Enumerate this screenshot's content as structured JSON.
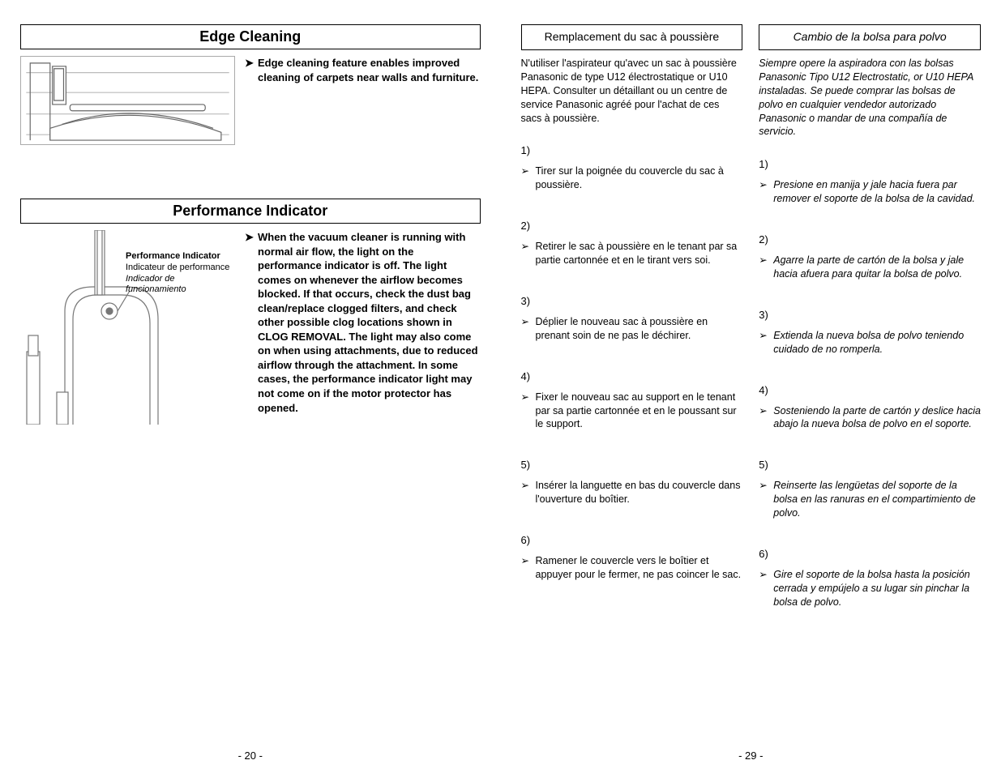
{
  "leftPage": {
    "section1": {
      "title": "Edge Cleaning",
      "body": "Edge cleaning feature enables improved cleaning of carpets near walls and furniture."
    },
    "section2": {
      "title": "Performance Indicator",
      "label": {
        "en": "Performance Indicator",
        "fr": "Indicateur de performance",
        "es": "Indicador de funcionamiento"
      },
      "body": "When the vacuum cleaner is running with normal air flow, the light on the performance indicator is off.  The light comes on whenever the airflow becomes blocked.  If that occurs, check the dust bag clean/replace clogged filters, and check other possible clog locations shown in CLOG REMOVAL. The light may also come on when using attachments, due to reduced airflow through the attachment. In some cases, the performance indicator light may not come on if the motor protector has opened."
    },
    "pageNumber": "- 20 -"
  },
  "rightPage": {
    "french": {
      "title": "Remplacement du sac à poussière",
      "intro": "N'utiliser l'aspirateur qu'avec un sac à poussière Panasonic de type U12 électrostatique or U10 HEPA. Consulter un détaillant ou un centre de service Panasonic agréé pour l'achat de ces sacs à poussière.",
      "steps": [
        {
          "num": "1)",
          "text": "Tirer sur la poignée du couvercle du sac à poussière."
        },
        {
          "num": "2)",
          "text": "Retirer le sac à poussière en le tenant par sa partie cartonnée et en le tirant vers soi."
        },
        {
          "num": "3)",
          "text": "Déplier le nouveau sac à poussière en prenant soin de ne pas le déchirer."
        },
        {
          "num": "4)",
          "text": "Fixer le nouveau sac au support en le tenant par sa partie cartonnée et en le poussant sur le support."
        },
        {
          "num": "5)",
          "text": "Insérer la languette en bas du couvercle dans l'ouverture du boîtier."
        },
        {
          "num": "6)",
          "text": "Ramener le couvercle vers le boîtier et appuyer pour le fermer, ne pas coincer le sac."
        }
      ]
    },
    "spanish": {
      "title": "Cambio de la bolsa para polvo",
      "intro": "Siempre opere la aspiradora con las bolsas Panasonic Tipo U12 Electrostatic, or U10 HEPA instaladas. Se puede comprar las bolsas de polvo en cualquier vendedor autorizado Panasonic o mandar de una compañía de servicio.",
      "steps": [
        {
          "num": "1)",
          "text": "Presione en manija y jale hacia fuera par remover el soporte de la bolsa de la cavidad."
        },
        {
          "num": "2)",
          "text": "Agarre la parte de cartón de la bolsa y jale hacia afuera para quitar la bolsa de polvo."
        },
        {
          "num": "3)",
          "text": "Extienda la nueva bolsa de polvo teniendo cuidado de no romperla."
        },
        {
          "num": "4)",
          "text": "Sosteniendo la parte de cartón y deslice hacia abajo la nueva bolsa de polvo en el soporte."
        },
        {
          "num": "5)",
          "text": "Reinserte las lengüetas del soporte de la bolsa en las ranuras en el compartimiento de polvo."
        },
        {
          "num": "6)",
          "text": "Gire el soporte de la bolsa hasta la posición cerrada y empújelo a su lugar sin pinchar la bolsa de polvo."
        }
      ]
    },
    "pageNumber": "- 29 -"
  },
  "bulletGlyph": "➤",
  "stepArrowGlyph": "➢",
  "colors": {
    "text": "#000000",
    "background": "#ffffff",
    "border": "#000000",
    "illustrationStroke": "#888888"
  }
}
